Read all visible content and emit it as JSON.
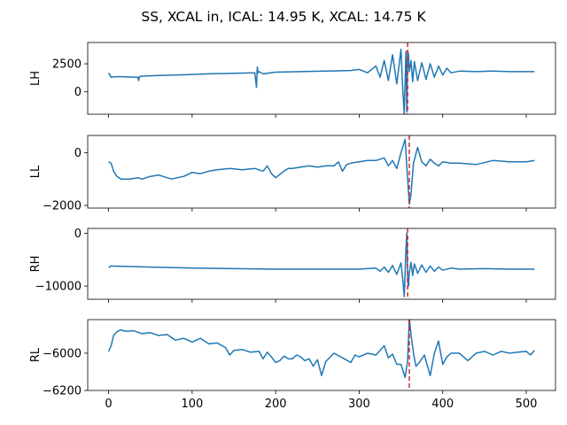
{
  "figure": {
    "title": "SS, XCAL in, ICAL: 14.95 K, XCAL: 14.75 K",
    "line_color": "#1f77b4",
    "marker_color": "#d62728"
  },
  "chart_data": [
    {
      "type": "line",
      "ylabel": "LH",
      "xlim": [
        -25,
        535
      ],
      "ylim": [
        -2000,
        4400
      ],
      "yticks": [
        0,
        2500
      ],
      "ytick_labels": [
        "0",
        "2500"
      ],
      "xticks": [
        0,
        100,
        200,
        300,
        400,
        500
      ],
      "show_xtick_labels": false,
      "vline_x": 358,
      "series": [
        {
          "x": [
            0,
            3,
            8,
            15,
            35,
            36,
            37,
            40,
            60,
            80,
            100,
            120,
            150,
            175,
            177,
            178,
            179,
            180,
            185,
            200,
            230,
            260,
            290,
            300,
            310,
            320,
            325,
            330,
            335,
            340,
            345,
            350,
            352,
            354,
            356,
            357,
            358,
            359,
            360,
            362,
            364,
            366,
            370,
            375,
            380,
            385,
            390,
            395,
            400,
            405,
            410,
            420,
            440,
            460,
            480,
            500,
            510
          ],
          "y": [
            1700,
            1300,
            1350,
            1350,
            1300,
            1000,
            1350,
            1400,
            1450,
            1500,
            1550,
            1600,
            1650,
            1700,
            400,
            2200,
            1700,
            1800,
            1600,
            1750,
            1800,
            1850,
            1900,
            2000,
            1700,
            2300,
            1300,
            2800,
            1000,
            3300,
            700,
            3800,
            400,
            -2000,
            3600,
            -1800,
            3700,
            3300,
            1800,
            2800,
            900,
            2700,
            1000,
            2600,
            1100,
            2500,
            1300,
            2300,
            1500,
            2100,
            1700,
            1850,
            1800,
            1850,
            1800,
            1800,
            1800
          ]
        }
      ]
    },
    {
      "type": "line",
      "ylabel": "LL",
      "xlim": [
        -25,
        535
      ],
      "ylim": [
        -2100,
        650
      ],
      "yticks": [
        0,
        -2000
      ],
      "ytick_labels": [
        "0",
        "−2000"
      ],
      "xticks": [
        0,
        100,
        200,
        300,
        400,
        500
      ],
      "show_xtick_labels": false,
      "vline_x": 360,
      "series": [
        {
          "x": [
            0,
            3,
            6,
            10,
            15,
            25,
            35,
            40,
            50,
            60,
            75,
            90,
            100,
            110,
            120,
            130,
            145,
            160,
            175,
            185,
            190,
            195,
            200,
            210,
            215,
            220,
            230,
            240,
            250,
            260,
            270,
            275,
            280,
            285,
            290,
            300,
            310,
            320,
            330,
            335,
            340,
            345,
            350,
            355,
            358,
            360,
            362,
            365,
            370,
            375,
            380,
            385,
            390,
            395,
            400,
            410,
            420,
            440,
            460,
            480,
            500,
            510
          ],
          "y": [
            -350,
            -400,
            -700,
            -900,
            -1000,
            -1000,
            -950,
            -1000,
            -900,
            -850,
            -1000,
            -900,
            -750,
            -800,
            -700,
            -650,
            -600,
            -650,
            -600,
            -700,
            -500,
            -800,
            -950,
            -700,
            -600,
            -600,
            -550,
            -500,
            -550,
            -500,
            -500,
            -350,
            -700,
            -450,
            -400,
            -350,
            -300,
            -300,
            -200,
            -500,
            -300,
            -600,
            0,
            500,
            -1000,
            -1950,
            -1600,
            -400,
            200,
            -350,
            -500,
            -250,
            -400,
            -500,
            -350,
            -400,
            -400,
            -450,
            -300,
            -350,
            -350,
            -300
          ]
        }
      ]
    },
    {
      "type": "line",
      "ylabel": "RH",
      "xlim": [
        -25,
        535
      ],
      "ylim": [
        -12500,
        900
      ],
      "yticks": [
        0,
        -10000
      ],
      "ytick_labels": [
        "0",
        "−10000"
      ],
      "xticks": [
        0,
        100,
        200,
        300,
        400,
        500
      ],
      "show_xtick_labels": false,
      "vline_x": 358,
      "series": [
        {
          "x": [
            0,
            3,
            50,
            100,
            150,
            200,
            250,
            300,
            320,
            325,
            330,
            335,
            340,
            345,
            350,
            352,
            354,
            356,
            357,
            358,
            359,
            360,
            362,
            364,
            366,
            370,
            375,
            380,
            385,
            390,
            395,
            400,
            410,
            420,
            450,
            480,
            510
          ],
          "y": [
            -6500,
            -6200,
            -6400,
            -6600,
            -6700,
            -6800,
            -6800,
            -6800,
            -6600,
            -7200,
            -6400,
            -7400,
            -6100,
            -7800,
            -5600,
            -8500,
            -12000,
            -3000,
            0,
            -9000,
            -10000,
            -7500,
            -5500,
            -8000,
            -5800,
            -7600,
            -6000,
            -7400,
            -6200,
            -7200,
            -6400,
            -7000,
            -6600,
            -6800,
            -6700,
            -6800,
            -6800
          ]
        }
      ]
    },
    {
      "type": "line",
      "ylabel": "RL",
      "xlim": [
        -25,
        535
      ],
      "ylim": [
        -6200,
        -5820
      ],
      "yticks": [
        -6000,
        -6200
      ],
      "ytick_labels": [
        "−6000",
        "−6200"
      ],
      "xticks": [
        0,
        100,
        200,
        300,
        400,
        500
      ],
      "show_xtick_labels": true,
      "xtick_labels": [
        "0",
        "100",
        "200",
        "300",
        "400",
        "500"
      ],
      "vline_x": 360,
      "series": [
        {
          "x": [
            0,
            3,
            6,
            10,
            15,
            20,
            30,
            40,
            50,
            60,
            70,
            80,
            90,
            100,
            110,
            120,
            130,
            140,
            145,
            150,
            160,
            170,
            180,
            185,
            190,
            195,
            200,
            205,
            210,
            215,
            220,
            225,
            230,
            235,
            240,
            245,
            250,
            255,
            260,
            270,
            280,
            290,
            295,
            300,
            310,
            320,
            330,
            335,
            340,
            345,
            350,
            355,
            358,
            360,
            362,
            365,
            368,
            372,
            378,
            385,
            390,
            395,
            400,
            405,
            410,
            420,
            430,
            440,
            450,
            460,
            470,
            480,
            490,
            500,
            505,
            510
          ],
          "y": [
            -5990,
            -5960,
            -5905,
            -5885,
            -5875,
            -5882,
            -5880,
            -5895,
            -5890,
            -5905,
            -5900,
            -5930,
            -5920,
            -5940,
            -5920,
            -5950,
            -5945,
            -5970,
            -6010,
            -5985,
            -5980,
            -5995,
            -5990,
            -6030,
            -5995,
            -6020,
            -6050,
            -6040,
            -6015,
            -6030,
            -6030,
            -6010,
            -6020,
            -6040,
            -6030,
            -6070,
            -6035,
            -6120,
            -6045,
            -6000,
            -6025,
            -6050,
            -6010,
            -6020,
            -6000,
            -6010,
            -5960,
            -6025,
            -6005,
            -6060,
            -6060,
            -6130,
            -6040,
            -5810,
            -5900,
            -6000,
            -6070,
            -6050,
            -6010,
            -6120,
            -6000,
            -5935,
            -6060,
            -6020,
            -6000,
            -6000,
            -6040,
            -6000,
            -5990,
            -6010,
            -5990,
            -6000,
            -5995,
            -5990,
            -6010,
            -5985
          ]
        }
      ]
    }
  ]
}
